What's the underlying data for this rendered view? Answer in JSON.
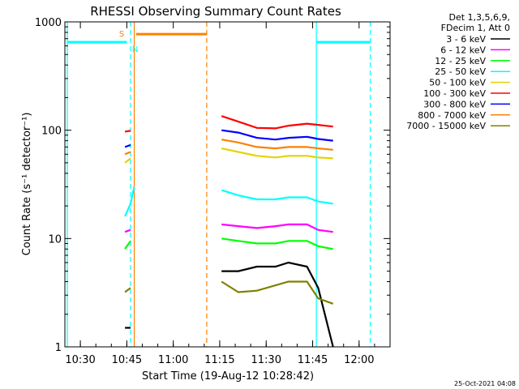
{
  "chart_data": {
    "type": "line",
    "title": "RHESSI Observing Summary Count Rates",
    "xlabel_prefix": "Start Time (19-Aug-12 10:28:42)",
    "ylabel": "Count Rate (s⁻¹ detector⁻¹)",
    "y_scale": "log",
    "ylim": [
      1,
      1000
    ],
    "xlim": [
      "10:25",
      "12:10"
    ],
    "x_ticks": [
      "10:30",
      "10:45",
      "11:00",
      "11:15",
      "11:30",
      "11:45",
      "12:00"
    ],
    "y_ticks": [
      "1",
      "10",
      "100",
      "1000"
    ],
    "legend_header": [
      "Det 1,3,5,6,9,",
      "FDecim 1, Att 0"
    ],
    "footer_date": "25-Oct-2021 04:08",
    "flag_labels": {
      "saa": "S",
      "night": "N"
    },
    "series": [
      {
        "name": "3 - 6 keV",
        "color": "#000000",
        "seg1": [
          [
            10.74,
            1.5
          ],
          [
            10.77,
            1.5
          ]
        ],
        "seg2": [
          [
            11.26,
            5.0
          ],
          [
            11.35,
            5.0
          ],
          [
            11.45,
            5.5
          ],
          [
            11.55,
            5.5
          ],
          [
            11.62,
            6.0
          ],
          [
            11.72,
            5.5
          ],
          [
            11.78,
            3.5
          ],
          [
            11.86,
            1.0
          ]
        ]
      },
      {
        "name": "6 - 12 keV",
        "color": "#ff00ff",
        "seg1": [
          [
            10.74,
            11.5
          ],
          [
            10.77,
            12
          ]
        ],
        "seg2": [
          [
            11.26,
            13.5
          ],
          [
            11.35,
            13.0
          ],
          [
            11.45,
            12.5
          ],
          [
            11.55,
            13.0
          ],
          [
            11.62,
            13.5
          ],
          [
            11.72,
            13.5
          ],
          [
            11.78,
            12.0
          ],
          [
            11.86,
            11.5
          ]
        ]
      },
      {
        "name": "12 - 25 keV",
        "color": "#00ff00",
        "seg1": [
          [
            10.74,
            8.0
          ],
          [
            10.77,
            9.5
          ]
        ],
        "seg2": [
          [
            11.26,
            10.0
          ],
          [
            11.35,
            9.5
          ],
          [
            11.45,
            9.0
          ],
          [
            11.55,
            9.0
          ],
          [
            11.62,
            9.5
          ],
          [
            11.72,
            9.5
          ],
          [
            11.78,
            8.5
          ],
          [
            11.86,
            8.0
          ]
        ]
      },
      {
        "name": "25 - 50 keV",
        "color": "#00ffff",
        "seg1": [
          [
            10.74,
            16
          ],
          [
            10.77,
            21
          ],
          [
            10.79,
            30
          ]
        ],
        "seg2": [
          [
            11.26,
            28
          ],
          [
            11.35,
            25
          ],
          [
            11.45,
            23
          ],
          [
            11.55,
            23
          ],
          [
            11.62,
            24
          ],
          [
            11.72,
            24
          ],
          [
            11.78,
            22
          ],
          [
            11.86,
            21
          ]
        ]
      },
      {
        "name": "50 - 100 keV",
        "color": "#e6d200",
        "seg1": [
          [
            10.74,
            50
          ],
          [
            10.77,
            55
          ]
        ],
        "seg2": [
          [
            11.26,
            68
          ],
          [
            11.35,
            63
          ],
          [
            11.45,
            58
          ],
          [
            11.55,
            56
          ],
          [
            11.62,
            58
          ],
          [
            11.72,
            58
          ],
          [
            11.78,
            56
          ],
          [
            11.86,
            55
          ]
        ]
      },
      {
        "name": "100 - 300 keV",
        "color": "#ff0000",
        "seg1": [
          [
            10.74,
            97
          ],
          [
            10.77,
            99
          ]
        ],
        "seg2": [
          [
            11.26,
            135
          ],
          [
            11.35,
            120
          ],
          [
            11.45,
            105
          ],
          [
            11.55,
            104
          ],
          [
            11.62,
            110
          ],
          [
            11.72,
            115
          ],
          [
            11.78,
            112
          ],
          [
            11.86,
            108
          ]
        ]
      },
      {
        "name": "300 - 800 keV",
        "color": "#0000ff",
        "seg1": [
          [
            10.74,
            70
          ],
          [
            10.77,
            73
          ]
        ],
        "seg2": [
          [
            11.26,
            100
          ],
          [
            11.35,
            95
          ],
          [
            11.45,
            85
          ],
          [
            11.55,
            82
          ],
          [
            11.62,
            85
          ],
          [
            11.72,
            87
          ],
          [
            11.78,
            83
          ],
          [
            11.86,
            80
          ]
        ]
      },
      {
        "name": "800 - 7000 keV",
        "color": "#ff8000",
        "seg1": [
          [
            10.74,
            60
          ],
          [
            10.77,
            63
          ]
        ],
        "seg2": [
          [
            11.26,
            82
          ],
          [
            11.35,
            77
          ],
          [
            11.45,
            70
          ],
          [
            11.55,
            68
          ],
          [
            11.62,
            70
          ],
          [
            11.72,
            70
          ],
          [
            11.78,
            68
          ],
          [
            11.86,
            66
          ]
        ]
      },
      {
        "name": "7000 - 15000 keV",
        "color": "#808000",
        "seg1": [
          [
            10.74,
            3.2
          ],
          [
            10.77,
            3.5
          ]
        ],
        "seg2": [
          [
            11.26,
            4.0
          ],
          [
            11.35,
            3.2
          ],
          [
            11.45,
            3.3
          ],
          [
            11.55,
            3.7
          ],
          [
            11.62,
            4.0
          ],
          [
            11.72,
            4.0
          ],
          [
            11.78,
            2.8
          ],
          [
            11.86,
            2.5
          ]
        ]
      }
    ],
    "flag_bars": [
      {
        "color": "#00ffff",
        "y": 650,
        "x": [
          10.43,
          10.75
        ]
      },
      {
        "color": "#00ffff",
        "y": 650,
        "x": [
          11.77,
          12.06
        ]
      },
      {
        "color": "#ff8000",
        "y": 770,
        "x": [
          10.8,
          11.18
        ]
      }
    ],
    "vlines": [
      {
        "x": 10.43,
        "color": "#00ffff",
        "style": "solid"
      },
      {
        "x": 10.77,
        "color": "#00ffff",
        "style": "dash"
      },
      {
        "x": 10.79,
        "color": "#ff8000",
        "style": "solid"
      },
      {
        "x": 11.18,
        "color": "#ff8000",
        "style": "dash"
      },
      {
        "x": 11.77,
        "color": "#00ffff",
        "style": "solid"
      },
      {
        "x": 12.06,
        "color": "#00ffff",
        "style": "dash"
      }
    ]
  }
}
